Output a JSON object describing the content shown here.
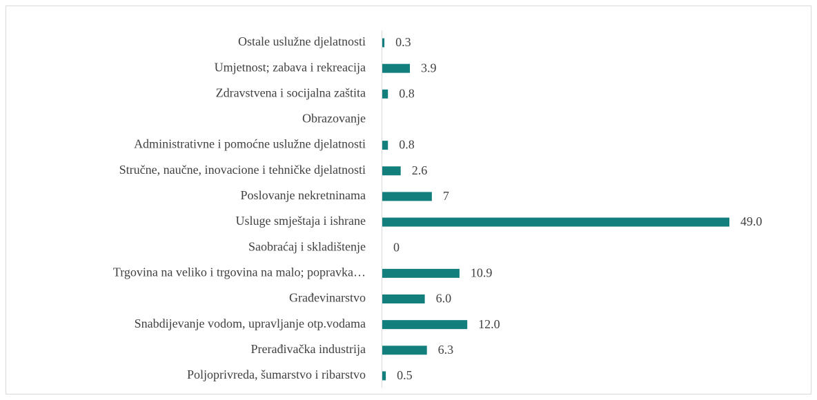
{
  "chart_data": {
    "type": "hbar",
    "categories": [
      "Ostale uslužne djelatnosti",
      "Umjetnost; zabava i rekreacija",
      "Zdravstvena i socijalna zaštita",
      "Obrazovanje",
      "Administrativne i pomoćne uslužne djelatnosti",
      "Stručne, naučne, inovacione i tehničke djelatnosti",
      "Poslovanje nekretninama",
      "Usluge smještaja i ishrane",
      "Saobraćaj i skladištenje",
      "Trgovina na veliko i trgovina na malo; popravka…",
      "Građevinarstvo",
      "Snabdijevanje vodom, upravljanje otp.vodama",
      "Prerađivačka industrija",
      "Poljoprivreda, šumarstvo i ribarstvo"
    ],
    "values": [
      0.3,
      3.9,
      0.8,
      null,
      0.8,
      2.6,
      7,
      49.0,
      0,
      10.9,
      6.0,
      12.0,
      6.3,
      0.5
    ],
    "value_labels": [
      "0.3",
      "3.9",
      "0.8",
      null,
      "0.8",
      "2.6",
      "7",
      "49.0",
      "0",
      "10.9",
      "6.0",
      "12.0",
      "6.3",
      "0.5"
    ],
    "color": "#137f7c"
  }
}
